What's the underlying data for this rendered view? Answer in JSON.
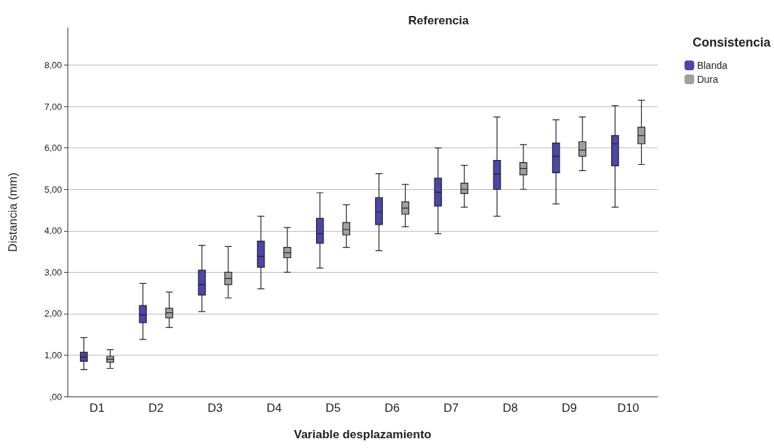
{
  "chart_data": {
    "type": "box",
    "title": "Referencia",
    "xlabel": "Variable desplazamiento",
    "ylabel": "Distancia (mm)",
    "legend_title": "Consistencia",
    "legend": "top right",
    "grid": "y",
    "categories": [
      "D1",
      "D2",
      "D3",
      "D4",
      "D5",
      "D6",
      "D7",
      "D8",
      "D9",
      "D10"
    ],
    "ylim": [
      0,
      8.9
    ],
    "yticks": [
      {
        "value": 0,
        "label": ",00"
      },
      {
        "value": 1,
        "label": "1,00"
      },
      {
        "value": 2,
        "label": "2,00"
      },
      {
        "value": 3,
        "label": "3,00"
      },
      {
        "value": 4,
        "label": "4,00"
      },
      {
        "value": 5,
        "label": "5,00"
      },
      {
        "value": 6,
        "label": "6,00"
      },
      {
        "value": 7,
        "label": "7,00"
      },
      {
        "value": 8,
        "label": "8,00"
      }
    ],
    "series": [
      {
        "name": "Blanda",
        "color": "#4b46a8",
        "boxes": [
          {
            "low": 0.65,
            "q1": 0.85,
            "median": 0.95,
            "q3": 1.07,
            "high": 1.42
          },
          {
            "low": 1.38,
            "q1": 1.78,
            "median": 1.97,
            "q3": 2.2,
            "high": 2.73
          },
          {
            "low": 2.05,
            "q1": 2.45,
            "median": 2.7,
            "q3": 3.05,
            "high": 3.65
          },
          {
            "low": 2.6,
            "q1": 3.12,
            "median": 3.38,
            "q3": 3.75,
            "high": 4.35
          },
          {
            "low": 3.1,
            "q1": 3.7,
            "median": 3.93,
            "q3": 4.3,
            "high": 4.92
          },
          {
            "low": 3.52,
            "q1": 4.15,
            "median": 4.45,
            "q3": 4.8,
            "high": 5.38
          },
          {
            "low": 3.93,
            "q1": 4.6,
            "median": 4.93,
            "q3": 5.27,
            "high": 6.0
          },
          {
            "low": 4.35,
            "q1": 5.0,
            "median": 5.37,
            "q3": 5.7,
            "high": 6.75
          },
          {
            "low": 4.65,
            "q1": 5.4,
            "median": 5.8,
            "q3": 6.12,
            "high": 6.68
          },
          {
            "low": 4.57,
            "q1": 5.57,
            "median": 6.1,
            "q3": 6.3,
            "high": 7.02
          }
        ]
      },
      {
        "name": "Dura",
        "color": "#a0a0a0",
        "boxes": [
          {
            "low": 0.68,
            "q1": 0.83,
            "median": 0.9,
            "q3": 0.97,
            "high": 1.13
          },
          {
            "low": 1.67,
            "q1": 1.9,
            "median": 2.02,
            "q3": 2.13,
            "high": 2.52
          },
          {
            "low": 2.38,
            "q1": 2.7,
            "median": 2.85,
            "q3": 3.0,
            "high": 3.62
          },
          {
            "low": 3.0,
            "q1": 3.35,
            "median": 3.47,
            "q3": 3.6,
            "high": 4.08
          },
          {
            "low": 3.6,
            "q1": 3.9,
            "median": 4.03,
            "q3": 4.2,
            "high": 4.63
          },
          {
            "low": 4.1,
            "q1": 4.4,
            "median": 4.55,
            "q3": 4.7,
            "high": 5.12
          },
          {
            "low": 4.57,
            "q1": 4.9,
            "median": 5.0,
            "q3": 5.15,
            "high": 5.58
          },
          {
            "low": 5.0,
            "q1": 5.35,
            "median": 5.5,
            "q3": 5.65,
            "high": 6.08
          },
          {
            "low": 5.45,
            "q1": 5.8,
            "median": 5.95,
            "q3": 6.15,
            "high": 6.75
          },
          {
            "low": 5.6,
            "q1": 6.1,
            "median": 6.3,
            "q3": 6.5,
            "high": 7.15
          }
        ]
      }
    ]
  }
}
